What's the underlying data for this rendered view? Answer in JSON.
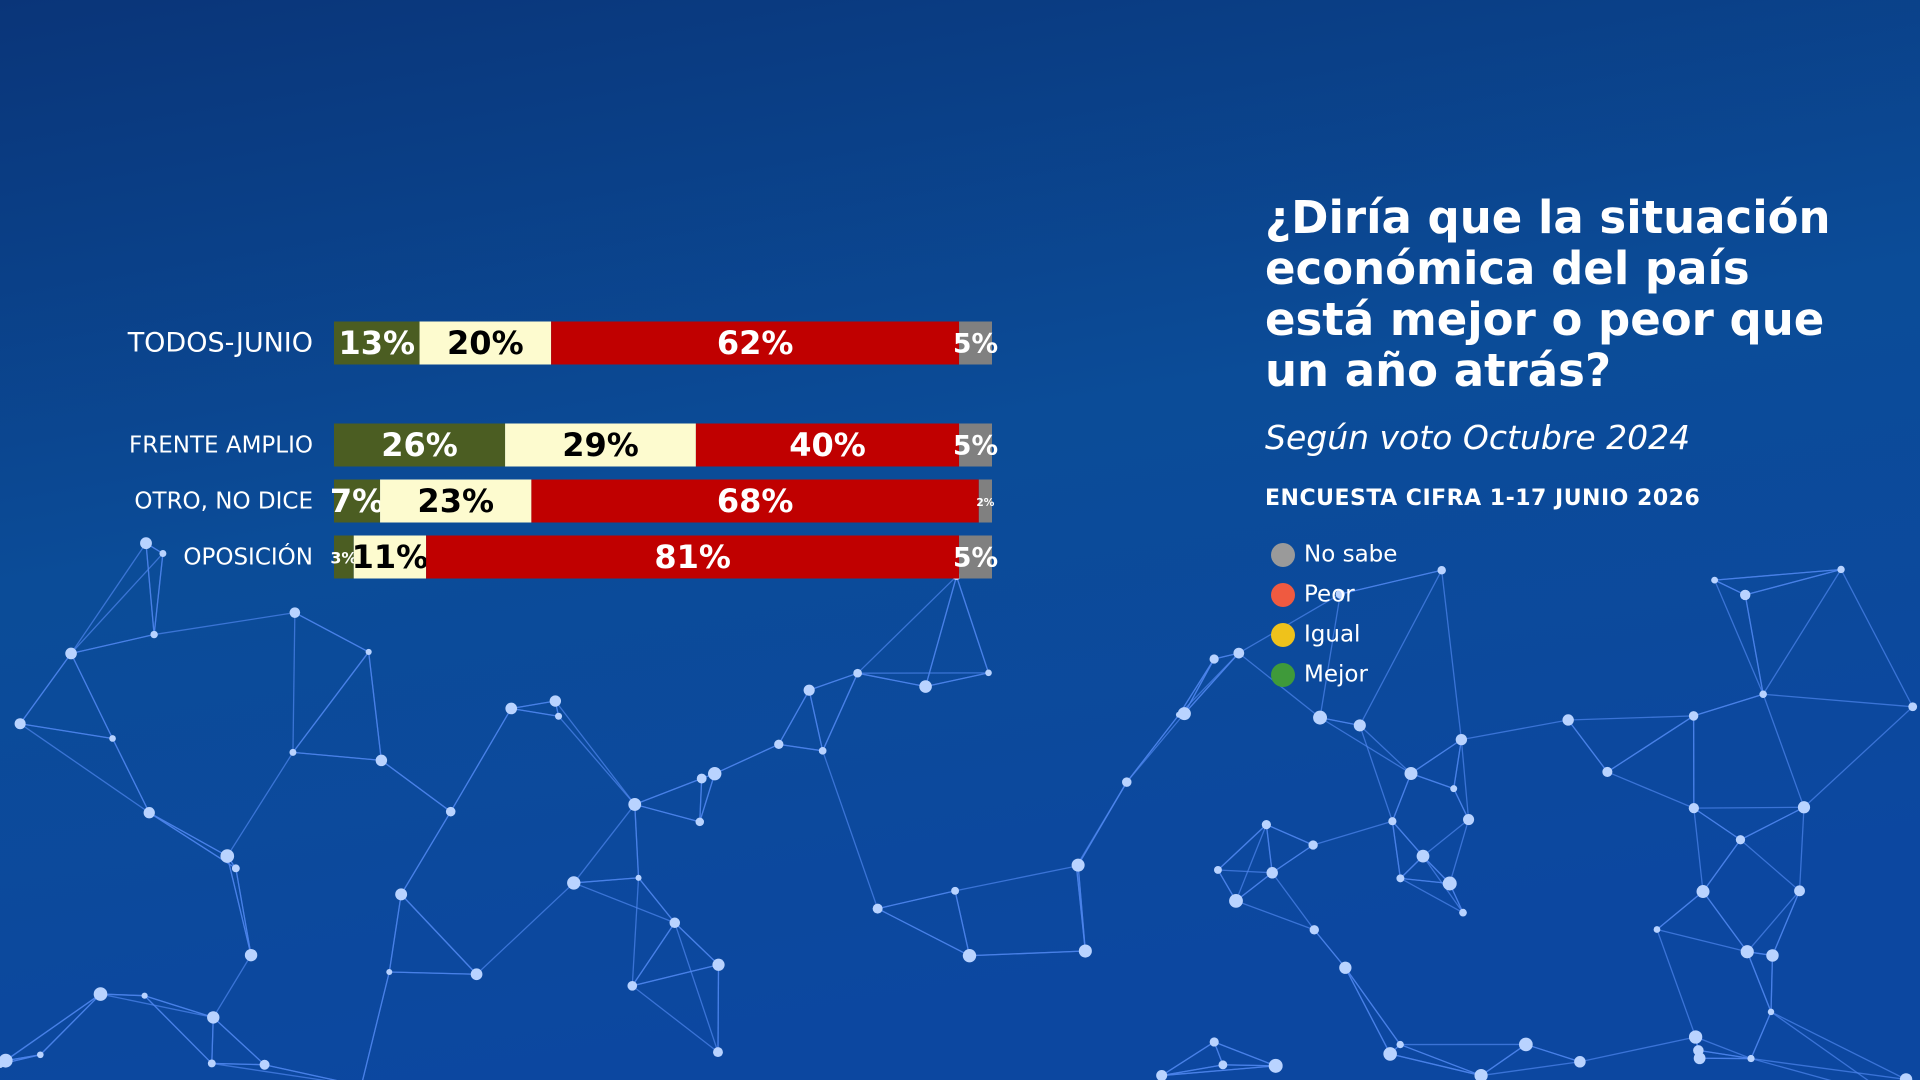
{
  "chart_data": {
    "type": "stacked-barh",
    "title": "¿Diría que la situación económica del país está mejor o peor que un año atrás?",
    "subtitle": "Según voto Octubre 2024",
    "source": "ENCUESTA CIFRA 1-17 JUNIO 2026",
    "categories": [
      "TODOS-JUNIO",
      "FRENTE AMPLIO",
      "OTRO, NO DICE",
      "OPOSICIÓN"
    ],
    "xlim": [
      0,
      100
    ],
    "series": [
      {
        "name": "Mejor",
        "color": "#4b5d22",
        "legend_color": "#3f9a3a",
        "label_color": "#ffffff",
        "values": [
          13,
          26,
          7,
          3
        ],
        "value_labels": [
          "13%",
          "26%",
          "7%",
          "3%"
        ]
      },
      {
        "name": "Igual",
        "color": "#fdfbcf",
        "legend_color": "#efc21b",
        "label_color": "#000000",
        "values": [
          20,
          29,
          23,
          11
        ],
        "value_labels": [
          "20%",
          "29%",
          "23%",
          "11%"
        ]
      },
      {
        "name": "Peor",
        "color": "#c00000",
        "legend_color": "#ef5a40",
        "label_color": "#ffffff",
        "values": [
          62,
          40,
          68,
          81
        ],
        "value_labels": [
          "62%",
          "40%",
          "68%",
          "81%"
        ]
      },
      {
        "name": "No sabe",
        "color": "#808080",
        "legend_color": "#9a9a9a",
        "label_color": "#ffffff",
        "values": [
          5,
          5,
          2,
          5
        ],
        "value_labels": [
          "5%",
          "5%",
          "2%",
          "5%"
        ]
      }
    ]
  }
}
